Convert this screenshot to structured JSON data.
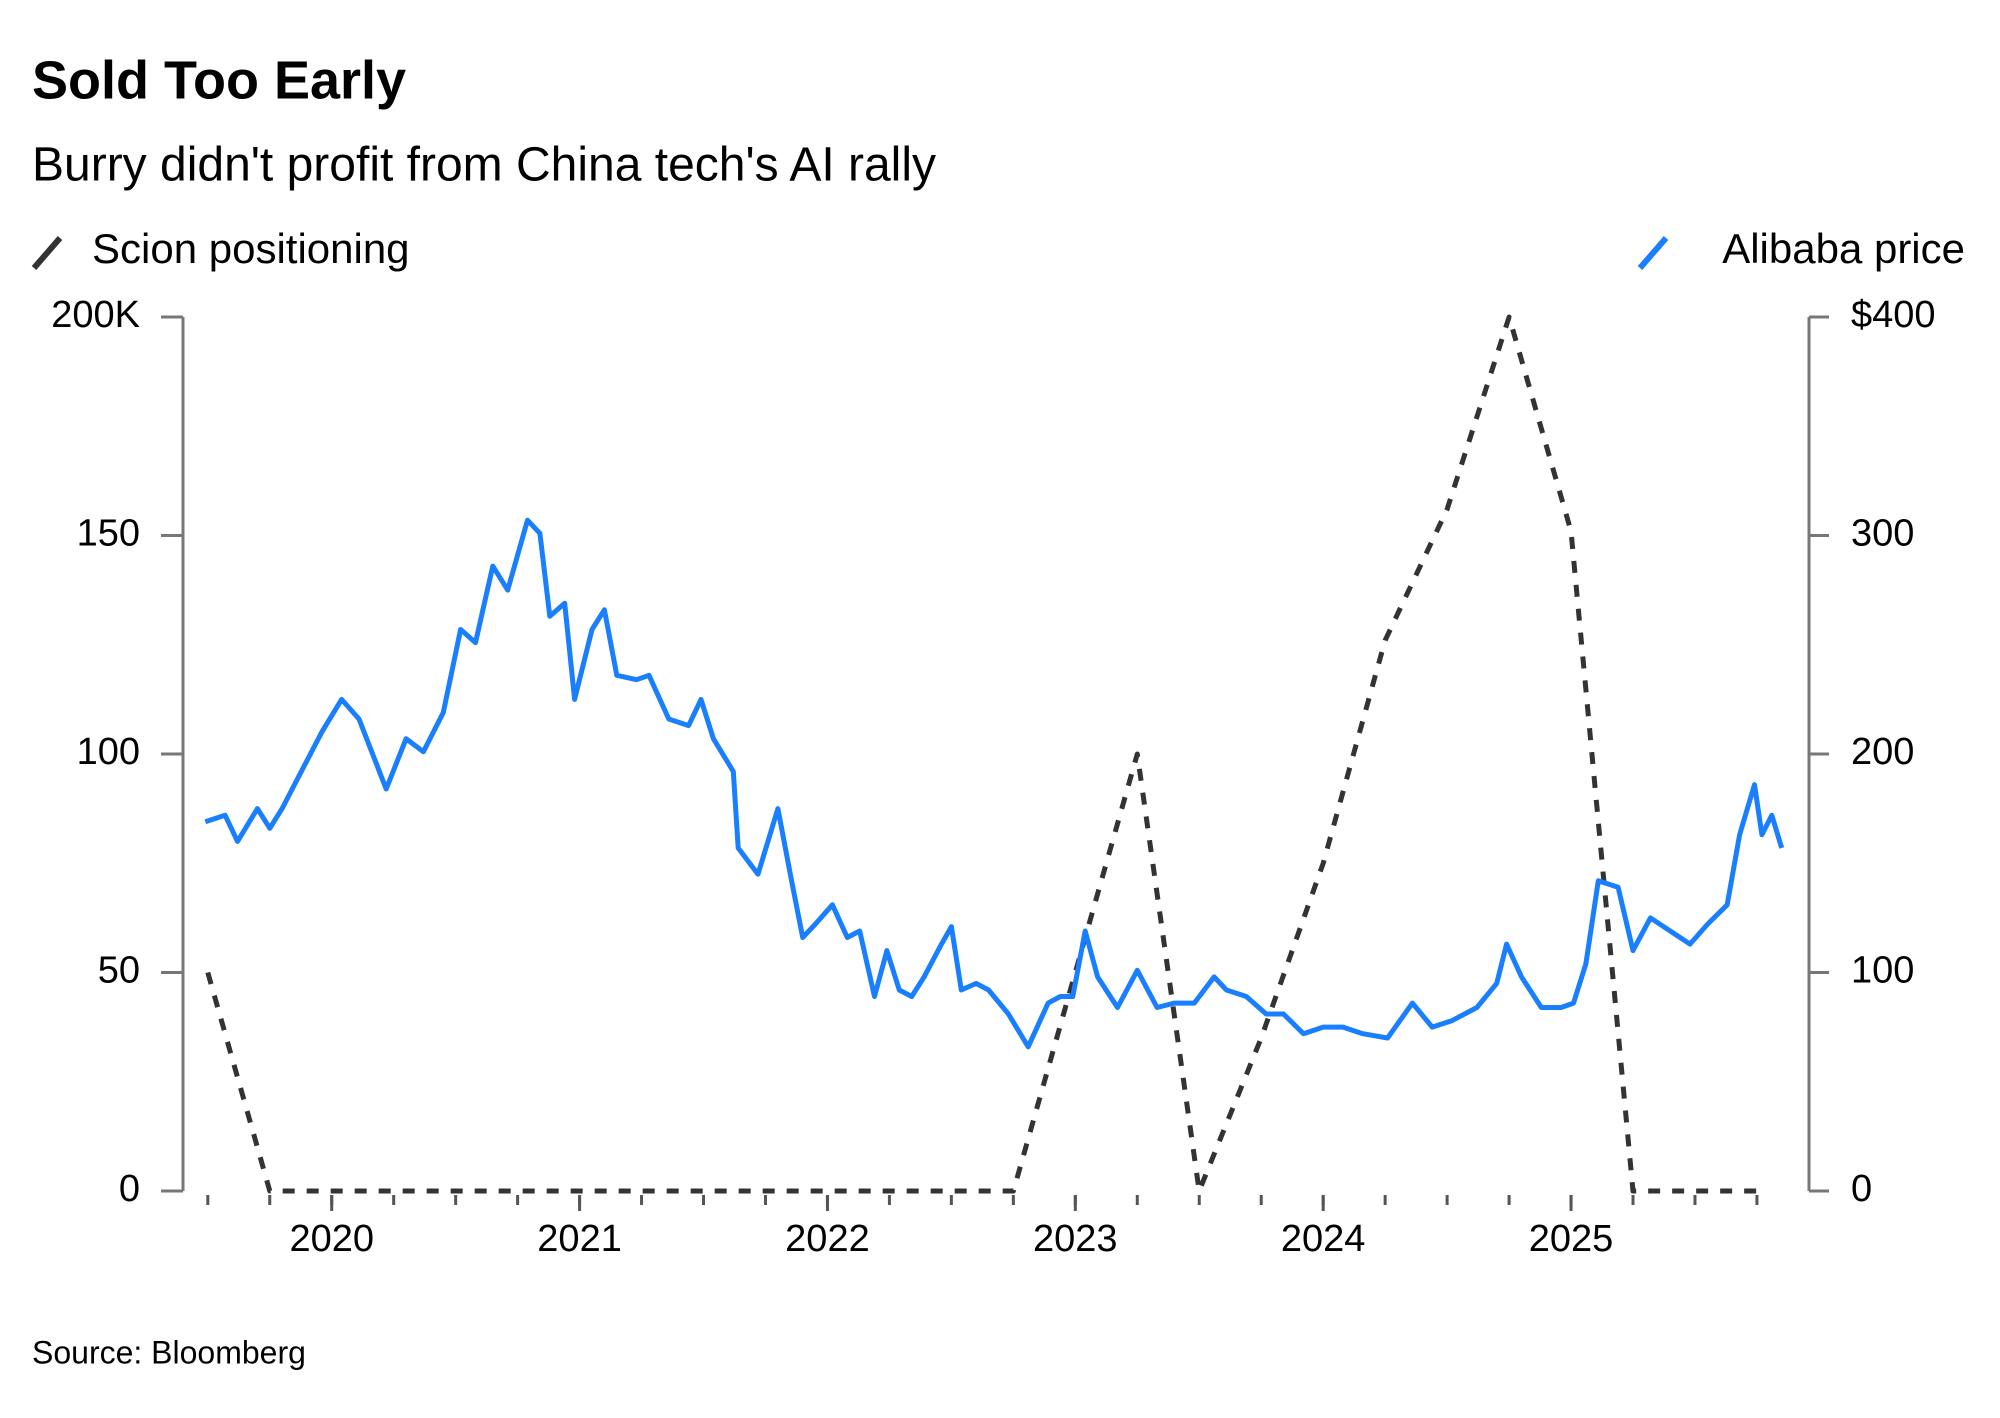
{
  "chart_data": {
    "type": "line",
    "title": "Sold Too Early",
    "subtitle": "Burry didn't profit from China tech's AI rally",
    "source": "Source: Bloomberg",
    "xlim": [
      2019.4,
      2025.96
    ],
    "xticks": [
      2020,
      2021,
      2022,
      2023,
      2024,
      2025
    ],
    "ylim": [
      0,
      200
    ],
    "yticks": [
      0,
      50,
      100,
      150,
      {
        "value": 200,
        "label": "200K"
      }
    ],
    "y2lim": [
      0,
      400
    ],
    "y2ticks": [
      0,
      100,
      200,
      300,
      {
        "value": 400,
        "label": "$400"
      }
    ],
    "grid": false,
    "series": [
      {
        "name": "Scion positioning",
        "color": "#333333",
        "line_style": "dashed",
        "axis": "y",
        "x": [
          2019.5,
          2019.75,
          2020,
          2020.25,
          2020.5,
          2020.75,
          2021,
          2021.25,
          2021.5,
          2021.75,
          2022,
          2022.25,
          2022.5,
          2022.75,
          2023,
          2023.25,
          2023.5,
          2023.75,
          2024,
          2024.25,
          2024.5,
          2024.75,
          2025,
          2025.25,
          2025.5,
          2025.75
        ],
        "values": [
          50,
          0,
          0,
          0,
          0,
          0,
          0,
          0,
          0,
          0,
          0,
          0,
          0,
          0,
          50,
          100,
          0,
          35,
          75,
          126,
          156,
          200,
          151,
          0,
          0,
          0
        ]
      },
      {
        "name": "Alibaba price",
        "color": "#1a7fff",
        "line_style": "solid",
        "axis": "y2",
        "x": [
          2019.49,
          2019.57,
          2019.62,
          2019.7,
          2019.75,
          2019.8,
          2019.85,
          2019.96,
          2020.04,
          2020.11,
          2020.22,
          2020.3,
          2020.37,
          2020.45,
          2020.52,
          2020.58,
          2020.65,
          2020.71,
          2020.79,
          2020.84,
          2020.88,
          2020.94,
          2020.98,
          2021.05,
          2021.1,
          2021.15,
          2021.23,
          2021.28,
          2021.36,
          2021.44,
          2021.49,
          2021.54,
          2021.62,
          2021.64,
          2021.72,
          2021.8,
          2021.85,
          2021.9,
          2021.95,
          2022.02,
          2022.08,
          2022.13,
          2022.19,
          2022.24,
          2022.29,
          2022.34,
          2022.39,
          2022.46,
          2022.5,
          2022.54,
          2022.6,
          2022.65,
          2022.73,
          2022.81,
          2022.89,
          2022.94,
          2022.99,
          2023.04,
          2023.09,
          2023.17,
          2023.25,
          2023.33,
          2023.4,
          2023.48,
          2023.56,
          2023.61,
          2023.69,
          2023.77,
          2023.84,
          2023.92,
          2024.0,
          2024.08,
          2024.16,
          2024.26,
          2024.36,
          2024.44,
          2024.52,
          2024.62,
          2024.7,
          2024.74,
          2024.8,
          2024.88,
          2024.96,
          2025.01,
          2025.06,
          2025.11,
          2025.19,
          2025.25,
          2025.32,
          2025.4,
          2025.48,
          2025.55,
          2025.63,
          2025.68,
          2025.74,
          2025.77,
          2025.81,
          2025.85
        ],
        "values": [
          169,
          172,
          160,
          175,
          166,
          175,
          186,
          210,
          225,
          216,
          184,
          207,
          201,
          219,
          257,
          251,
          286,
          275,
          307,
          301,
          263,
          269,
          225,
          257,
          266,
          236,
          234,
          236,
          216,
          213,
          225,
          207,
          192,
          157,
          145,
          175,
          145,
          116,
          122,
          131,
          116,
          119,
          89,
          110,
          92,
          89,
          98,
          113,
          121,
          92,
          95,
          92,
          81,
          66,
          86,
          89,
          89,
          119,
          98,
          84,
          101,
          84,
          86,
          86,
          98,
          92,
          89,
          81,
          81,
          72,
          75,
          75,
          72,
          70,
          86,
          75,
          78,
          84,
          95,
          113,
          98,
          84,
          84,
          86,
          104,
          142,
          139,
          110,
          125,
          119,
          113,
          122,
          131,
          163,
          186,
          163,
          172,
          157
        ]
      }
    ]
  }
}
